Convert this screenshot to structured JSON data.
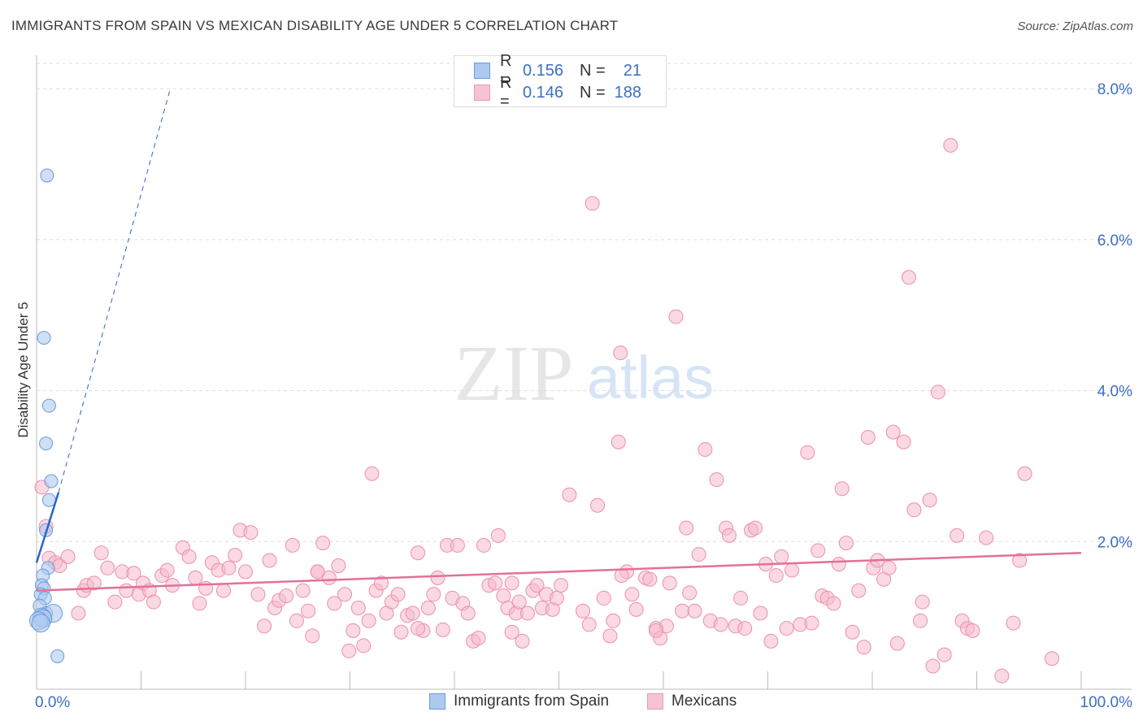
{
  "title": "IMMIGRANTS FROM SPAIN VS MEXICAN DISABILITY AGE UNDER 5 CORRELATION CHART",
  "source": "Source: ZipAtlas.com",
  "watermark": {
    "zip": "ZIP",
    "atlas": "atlas"
  },
  "legend_top": {
    "rows": [
      {
        "r_label": "R =",
        "r_value": "0.156",
        "n_label": "N =",
        "n_value": "21"
      },
      {
        "r_label": "R =",
        "r_value": "0.146",
        "n_label": "N =",
        "n_value": "188"
      }
    ]
  },
  "legend_bottom": [
    "Immigrants from Spain",
    "Mexicans"
  ],
  "colors": {
    "spain_fill": "#adc9f0",
    "spain_stroke": "#6a9bdc",
    "spain_line": "#2a66c8",
    "mex_fill": "#f6b9cb",
    "mex_stroke": "#eb8fac",
    "mex_line": "#e2709a",
    "axis_text": "#3b6fc4",
    "grid": "#dddddd"
  },
  "chart_data": {
    "type": "scatter",
    "title": "IMMIGRANTS FROM SPAIN VS MEXICAN DISABILITY AGE UNDER 5 CORRELATION CHART",
    "xlabel": "",
    "ylabel": "Disability Age Under 5",
    "xlim": [
      0,
      100
    ],
    "ylim": [
      0,
      8.4
    ],
    "x_tick_labels": [
      "0.0%",
      "100.0%"
    ],
    "y_ticks": [
      2.0,
      4.0,
      6.0,
      8.0
    ],
    "y_tick_labels": [
      "2.0%",
      "4.0%",
      "6.0%",
      "8.0%"
    ],
    "series": [
      {
        "name": "Immigrants from Spain",
        "R": 0.156,
        "N": 21,
        "points": [
          [
            1.0,
            6.85
          ],
          [
            0.7,
            4.7
          ],
          [
            1.2,
            3.8
          ],
          [
            0.9,
            3.3
          ],
          [
            1.4,
            2.8
          ],
          [
            1.2,
            2.55
          ],
          [
            0.9,
            2.15
          ],
          [
            1.1,
            1.65
          ],
          [
            0.6,
            1.55
          ],
          [
            0.5,
            1.42
          ],
          [
            0.7,
            1.38
          ],
          [
            0.4,
            1.3
          ],
          [
            0.8,
            1.25
          ],
          [
            0.3,
            1.15
          ],
          [
            0.9,
            1.05
          ],
          [
            1.6,
            1.05
          ],
          [
            0.5,
            1.0
          ],
          [
            0.6,
            0.98
          ],
          [
            0.2,
            0.95
          ],
          [
            0.4,
            0.92
          ],
          [
            2.0,
            0.48
          ]
        ],
        "trend": {
          "x": [
            0,
            2.1
          ],
          "y": [
            1.72,
            2.65
          ]
        },
        "trend_dashed": {
          "x": [
            2.1,
            12.8
          ],
          "y": [
            2.65,
            8.0
          ]
        }
      },
      {
        "name": "Mexicans",
        "R": 0.146,
        "N": 188,
        "trend": {
          "x": [
            0,
            100
          ],
          "y": [
            1.35,
            1.85
          ]
        },
        "points": [
          [
            0.5,
            2.72
          ],
          [
            0.9,
            2.2
          ],
          [
            1.2,
            1.78
          ],
          [
            1.8,
            1.72
          ],
          [
            2.2,
            1.68
          ],
          [
            3.0,
            1.8
          ],
          [
            4.0,
            1.05
          ],
          [
            4.5,
            1.35
          ],
          [
            4.8,
            1.42
          ],
          [
            5.5,
            1.45
          ],
          [
            6.2,
            1.85
          ],
          [
            6.8,
            1.65
          ],
          [
            7.5,
            1.2
          ],
          [
            8.2,
            1.6
          ],
          [
            8.6,
            1.35
          ],
          [
            9.3,
            1.58
          ],
          [
            9.8,
            1.3
          ],
          [
            10.2,
            1.45
          ],
          [
            10.8,
            1.35
          ],
          [
            11.2,
            1.2
          ],
          [
            12.0,
            1.55
          ],
          [
            12.5,
            1.62
          ],
          [
            13.0,
            1.42
          ],
          [
            14.0,
            1.92
          ],
          [
            14.6,
            1.8
          ],
          [
            15.2,
            1.52
          ],
          [
            15.6,
            1.18
          ],
          [
            16.2,
            1.38
          ],
          [
            16.8,
            1.72
          ],
          [
            17.4,
            1.62
          ],
          [
            17.9,
            1.35
          ],
          [
            18.4,
            1.65
          ],
          [
            19.0,
            1.82
          ],
          [
            19.5,
            2.15
          ],
          [
            20.0,
            1.6
          ],
          [
            20.5,
            2.12
          ],
          [
            21.2,
            1.3
          ],
          [
            21.8,
            0.88
          ],
          [
            22.3,
            1.75
          ],
          [
            22.8,
            1.12
          ],
          [
            23.2,
            1.22
          ],
          [
            23.9,
            1.28
          ],
          [
            24.5,
            1.95
          ],
          [
            24.9,
            0.95
          ],
          [
            25.5,
            1.35
          ],
          [
            26.0,
            1.08
          ],
          [
            26.4,
            0.75
          ],
          [
            26.9,
            1.6
          ],
          [
            27.4,
            1.98
          ],
          [
            28.0,
            1.52
          ],
          [
            28.5,
            1.18
          ],
          [
            28.9,
            1.68
          ],
          [
            29.5,
            1.3
          ],
          [
            29.9,
            0.55
          ],
          [
            30.3,
            0.82
          ],
          [
            30.8,
            1.12
          ],
          [
            31.3,
            0.62
          ],
          [
            31.8,
            0.95
          ],
          [
            32.1,
            2.9
          ],
          [
            32.5,
            1.35
          ],
          [
            33.0,
            1.45
          ],
          [
            33.5,
            1.05
          ],
          [
            34.0,
            1.2
          ],
          [
            34.6,
            1.3
          ],
          [
            34.9,
            0.8
          ],
          [
            35.5,
            1.02
          ],
          [
            36.0,
            1.05
          ],
          [
            36.5,
            1.85
          ],
          [
            37.0,
            0.82
          ],
          [
            37.5,
            1.12
          ],
          [
            38.0,
            1.3
          ],
          [
            38.4,
            1.52
          ],
          [
            38.9,
            0.83
          ],
          [
            39.3,
            1.95
          ],
          [
            39.8,
            1.25
          ],
          [
            40.3,
            1.95
          ],
          [
            40.8,
            1.18
          ],
          [
            41.3,
            1.05
          ],
          [
            41.8,
            0.68
          ],
          [
            42.3,
            0.72
          ],
          [
            42.8,
            1.95
          ],
          [
            43.3,
            1.42
          ],
          [
            43.9,
            1.45
          ],
          [
            44.2,
            2.08
          ],
          [
            44.7,
            1.28
          ],
          [
            45.1,
            1.12
          ],
          [
            45.5,
            0.8
          ],
          [
            45.9,
            1.05
          ],
          [
            46.2,
            1.2
          ],
          [
            46.5,
            0.68
          ],
          [
            47.0,
            1.05
          ],
          [
            47.5,
            1.35
          ],
          [
            47.9,
            1.42
          ],
          [
            48.4,
            1.12
          ],
          [
            48.8,
            1.3
          ],
          [
            49.4,
            1.1
          ],
          [
            49.8,
            1.25
          ],
          [
            50.2,
            1.42
          ],
          [
            51.0,
            2.62
          ],
          [
            52.3,
            1.08
          ],
          [
            52.9,
            0.9
          ],
          [
            53.2,
            6.48
          ],
          [
            53.7,
            2.48
          ],
          [
            54.3,
            1.25
          ],
          [
            54.9,
            0.75
          ],
          [
            55.2,
            0.95
          ],
          [
            55.7,
            3.32
          ],
          [
            55.9,
            4.5
          ],
          [
            56.5,
            1.6
          ],
          [
            57.0,
            1.3
          ],
          [
            57.4,
            1.1
          ],
          [
            58.3,
            1.52
          ],
          [
            58.7,
            1.5
          ],
          [
            59.3,
            0.85
          ],
          [
            59.7,
            0.72
          ],
          [
            60.3,
            0.88
          ],
          [
            60.6,
            1.45
          ],
          [
            61.2,
            4.98
          ],
          [
            61.8,
            1.08
          ],
          [
            62.2,
            2.18
          ],
          [
            62.5,
            1.32
          ],
          [
            63.0,
            1.08
          ],
          [
            63.4,
            1.83
          ],
          [
            64.0,
            3.22
          ],
          [
            64.5,
            0.95
          ],
          [
            65.1,
            2.82
          ],
          [
            65.5,
            0.9
          ],
          [
            66.0,
            2.18
          ],
          [
            66.3,
            2.08
          ],
          [
            66.9,
            0.88
          ],
          [
            67.4,
            1.25
          ],
          [
            67.8,
            0.85
          ],
          [
            68.4,
            2.15
          ],
          [
            68.8,
            2.18
          ],
          [
            69.3,
            1.05
          ],
          [
            69.8,
            1.7
          ],
          [
            70.3,
            0.68
          ],
          [
            70.8,
            1.55
          ],
          [
            71.3,
            1.8
          ],
          [
            71.8,
            0.85
          ],
          [
            72.3,
            1.62
          ],
          [
            73.1,
            0.9
          ],
          [
            73.8,
            3.18
          ],
          [
            74.2,
            0.92
          ],
          [
            74.8,
            1.88
          ],
          [
            75.2,
            1.28
          ],
          [
            75.7,
            1.25
          ],
          [
            76.3,
            1.18
          ],
          [
            76.8,
            1.7
          ],
          [
            77.1,
            2.7
          ],
          [
            77.5,
            1.98
          ],
          [
            78.1,
            0.8
          ],
          [
            78.7,
            1.35
          ],
          [
            79.2,
            0.6
          ],
          [
            79.6,
            3.38
          ],
          [
            80.1,
            1.65
          ],
          [
            80.5,
            1.75
          ],
          [
            81.1,
            1.5
          ],
          [
            81.6,
            1.65
          ],
          [
            82.0,
            3.45
          ],
          [
            82.4,
            0.65
          ],
          [
            83.0,
            3.32
          ],
          [
            83.5,
            5.5
          ],
          [
            84.0,
            2.42
          ],
          [
            84.6,
            0.95
          ],
          [
            84.8,
            1.2
          ],
          [
            85.5,
            2.55
          ],
          [
            85.8,
            0.35
          ],
          [
            86.3,
            3.98
          ],
          [
            86.9,
            0.5
          ],
          [
            87.5,
            7.25
          ],
          [
            88.1,
            2.08
          ],
          [
            88.6,
            0.95
          ],
          [
            89.1,
            0.85
          ],
          [
            89.6,
            0.82
          ],
          [
            90.9,
            2.05
          ],
          [
            92.4,
            0.22
          ],
          [
            93.5,
            0.92
          ],
          [
            94.1,
            1.75
          ],
          [
            94.6,
            2.9
          ],
          [
            97.2,
            0.45
          ],
          [
            59.3,
            0.82
          ],
          [
            56.0,
            1.55
          ],
          [
            45.5,
            1.45
          ],
          [
            36.5,
            0.85
          ],
          [
            26.9,
            1.6
          ]
        ]
      }
    ]
  }
}
